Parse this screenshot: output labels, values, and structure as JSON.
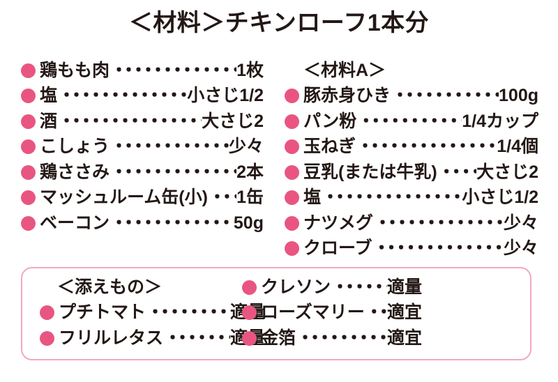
{
  "title": "＜材料＞チキンローフ1本分",
  "leader_char": "・",
  "colors": {
    "bullet": "#E95581",
    "text": "#231815",
    "box_border": "#F4A6C6",
    "background": "#FFFFFF"
  },
  "columns": {
    "left": {
      "items": [
        {
          "name": "鶏もも肉",
          "amount": "1枚"
        },
        {
          "name": "塩",
          "amount": "小さじ1/2"
        },
        {
          "name": "酒",
          "amount": "大さじ2"
        },
        {
          "name": "こしょう",
          "amount": "少々"
        },
        {
          "name": "鶏ささみ",
          "amount": "2本"
        },
        {
          "name": "マッシュルーム缶(小)",
          "amount": "1缶"
        },
        {
          "name": "ベーコン",
          "amount": "50g"
        }
      ]
    },
    "right": {
      "header": "＜材料A＞",
      "items": [
        {
          "name": "豚赤身ひき",
          "amount": "100g"
        },
        {
          "name": "パン粉",
          "amount": "1/4カップ"
        },
        {
          "name": "玉ねぎ",
          "amount": "1/4個"
        },
        {
          "name": "豆乳(または牛乳)",
          "amount": "大さじ2"
        },
        {
          "name": "塩",
          "amount": "小さじ1/2"
        },
        {
          "name": "ナツメグ",
          "amount": "少々"
        },
        {
          "name": "クローブ",
          "amount": "少々"
        }
      ]
    }
  },
  "garnish": {
    "header": "＜添えもの＞",
    "left_items": [
      {
        "name": "プチトマト",
        "amount": "適量"
      },
      {
        "name": "フリルレタス",
        "amount": "適量"
      }
    ],
    "right_items": [
      {
        "name": "クレソン",
        "amount": "適量"
      },
      {
        "name": "ローズマリー",
        "amount": "適宜"
      },
      {
        "name": "金箔",
        "amount": "適宜"
      }
    ]
  }
}
